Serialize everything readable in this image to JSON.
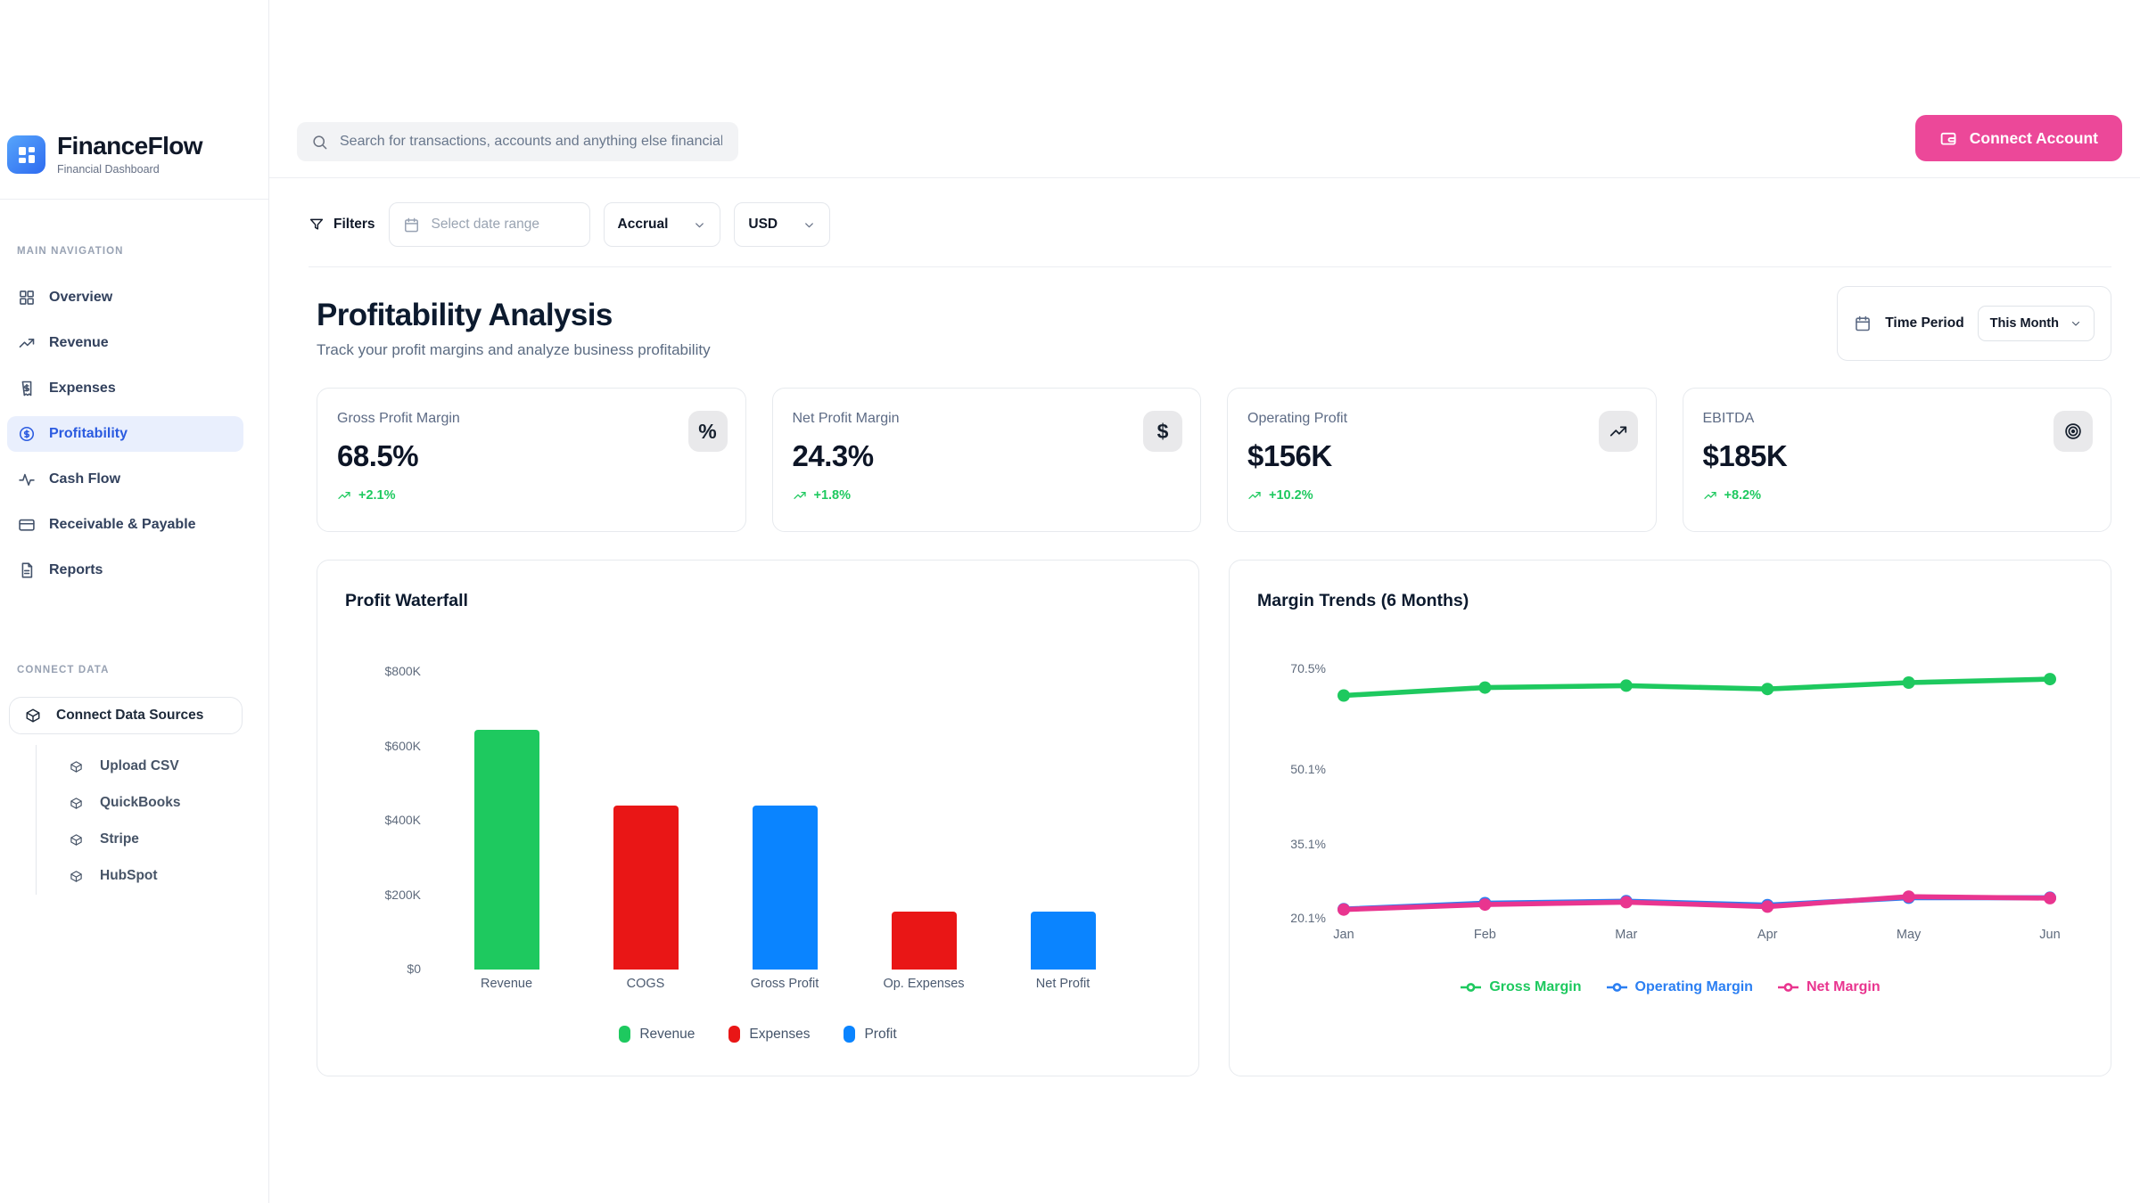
{
  "brand": {
    "name": "FinanceFlow",
    "tagline": "Financial Dashboard"
  },
  "header": {
    "search_placeholder": "Search for transactions, accounts and anything else financial",
    "connect_account_label": "Connect Account"
  },
  "filters_bar": {
    "filters_label": "Filters",
    "date_range_placeholder": "Select date range",
    "method_value": "Accrual",
    "currency_value": "USD"
  },
  "page_header": {
    "title": "Profitability Analysis",
    "subtitle": "Track your profit margins and analyze business profitability",
    "time_period_label": "Time Period",
    "time_period_value": "This Month"
  },
  "sidebar": {
    "nav_section_label": "MAIN NAVIGATION",
    "items": [
      {
        "label": "Overview",
        "icon": "grid-icon",
        "active": false
      },
      {
        "label": "Revenue",
        "icon": "trending-up-icon",
        "active": false
      },
      {
        "label": "Expenses",
        "icon": "receipt-icon",
        "active": false
      },
      {
        "label": "Profitability",
        "icon": "dollar-circle-icon",
        "active": true
      },
      {
        "label": "Cash Flow",
        "icon": "activity-icon",
        "active": false
      },
      {
        "label": "Receivable & Payable",
        "icon": "credit-card-icon",
        "active": false
      },
      {
        "label": "Reports",
        "icon": "document-icon",
        "active": false
      }
    ],
    "connect_section_label": "CONNECT DATA",
    "connect_button_label": "Connect Data Sources",
    "connect_items": [
      {
        "label": "Upload CSV",
        "icon": "package-icon"
      },
      {
        "label": "QuickBooks",
        "icon": "package-icon"
      },
      {
        "label": "Stripe",
        "icon": "package-icon"
      },
      {
        "label": "HubSpot",
        "icon": "package-icon"
      }
    ]
  },
  "kpis": [
    {
      "label": "Gross Profit Margin",
      "value": "68.5%",
      "delta": "+2.1%",
      "icon": "percent-icon"
    },
    {
      "label": "Net Profit Margin",
      "value": "24.3%",
      "delta": "+1.8%",
      "icon": "dollar-icon"
    },
    {
      "label": "Operating Profit",
      "value": "$156K",
      "delta": "+10.2%",
      "icon": "trending-up-icon"
    },
    {
      "label": "EBITDA",
      "value": "$185K",
      "delta": "+8.2%",
      "icon": "target-icon"
    }
  ],
  "chart_data": [
    {
      "type": "bar",
      "title": "Profit Waterfall",
      "categories": [
        "Revenue",
        "COGS",
        "Gross Profit",
        "Op. Expenses",
        "Net Profit"
      ],
      "values": [
        645,
        440,
        440,
        155,
        155
      ],
      "unit": "thousand USD",
      "bar_colors": [
        "#1ec95f",
        "#e91616",
        "#0a84ff",
        "#e91616",
        "#0a84ff"
      ],
      "ylim": [
        0,
        800
      ],
      "y_ticks": [
        {
          "label": "$800K",
          "value": 800
        },
        {
          "label": "$600K",
          "value": 600
        },
        {
          "label": "$400K",
          "value": 400
        },
        {
          "label": "$200K",
          "value": 200
        },
        {
          "label": "$0",
          "value": 0
        }
      ],
      "grid": false,
      "legend_position": "bottom",
      "legend": [
        {
          "label": "Revenue",
          "color": "#1ec95f"
        },
        {
          "label": "Expenses",
          "color": "#e91616"
        },
        {
          "label": "Profit",
          "color": "#0a84ff"
        }
      ]
    },
    {
      "type": "line",
      "title": "Margin Trends (6 Months)",
      "x": [
        "Jan",
        "Feb",
        "Mar",
        "Apr",
        "May",
        "Jun"
      ],
      "series": [
        {
          "name": "Gross Margin",
          "color": "#1ec95f",
          "values": [
            65.2,
            66.8,
            67.2,
            66.5,
            67.8,
            68.5
          ]
        },
        {
          "name": "Operating Margin",
          "color": "#2b7ff2",
          "values": [
            22.1,
            23.3,
            23.7,
            22.9,
            24.4,
            24.4
          ]
        },
        {
          "name": "Net Margin",
          "color": "#e9358f",
          "values": [
            22.0,
            23.0,
            23.5,
            22.6,
            24.6,
            24.3
          ]
        }
      ],
      "ylim": [
        20.1,
        73.5
      ],
      "y_ticks": [
        {
          "label": "70.5%",
          "value": 70.5
        },
        {
          "label": "50.1%",
          "value": 50.1
        },
        {
          "label": "35.1%",
          "value": 35.1
        },
        {
          "label": "20.1%",
          "value": 20.1
        }
      ],
      "grid": false,
      "legend_position": "bottom"
    }
  ],
  "colors": {
    "accent_pink": "#ec4899",
    "positive_green": "#1ec95f",
    "negative_red": "#e91616",
    "profit_blue": "#0a84ff",
    "operating_blue": "#2b7ff2",
    "net_pink": "#e9358f",
    "active_nav_text": "#2b5be0",
    "active_nav_bg": "#e9effd"
  }
}
